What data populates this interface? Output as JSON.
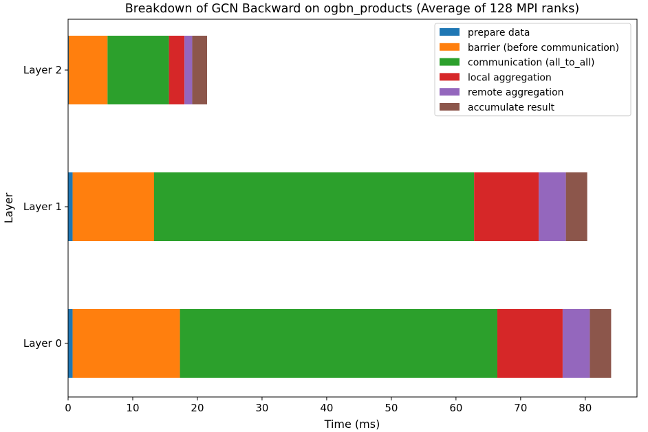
{
  "chart_data": {
    "type": "bar",
    "orientation": "horizontal",
    "stacked": true,
    "title": "Breakdown of GCN Backward on ogbn_products (Average of 128 MPI ranks)",
    "xlabel": "Time (ms)",
    "ylabel": "Layer",
    "xlim": [
      0,
      88
    ],
    "xticks": [
      0,
      10,
      20,
      30,
      40,
      50,
      60,
      70,
      80
    ],
    "categories": [
      "Layer 0",
      "Layer 1",
      "Layer 2"
    ],
    "grid": false,
    "legend_position": "top-right",
    "series": [
      {
        "name": "prepare data",
        "color": "#1f77b4",
        "values": [
          0.7,
          0.7,
          0.1
        ]
      },
      {
        "name": "barrier (before communication)",
        "color": "#ff7f0e",
        "values": [
          16.6,
          12.6,
          6.0
        ]
      },
      {
        "name": "communication (all_to_all)",
        "color": "#2ca02c",
        "values": [
          49.1,
          49.5,
          9.5
        ]
      },
      {
        "name": "local aggregation",
        "color": "#d62728",
        "values": [
          10.1,
          10.0,
          2.4
        ]
      },
      {
        "name": "remote aggregation",
        "color": "#9467bd",
        "values": [
          4.2,
          4.2,
          1.2
        ]
      },
      {
        "name": "accumulate result",
        "color": "#8c564b",
        "values": [
          3.3,
          3.3,
          2.3
        ]
      }
    ]
  }
}
